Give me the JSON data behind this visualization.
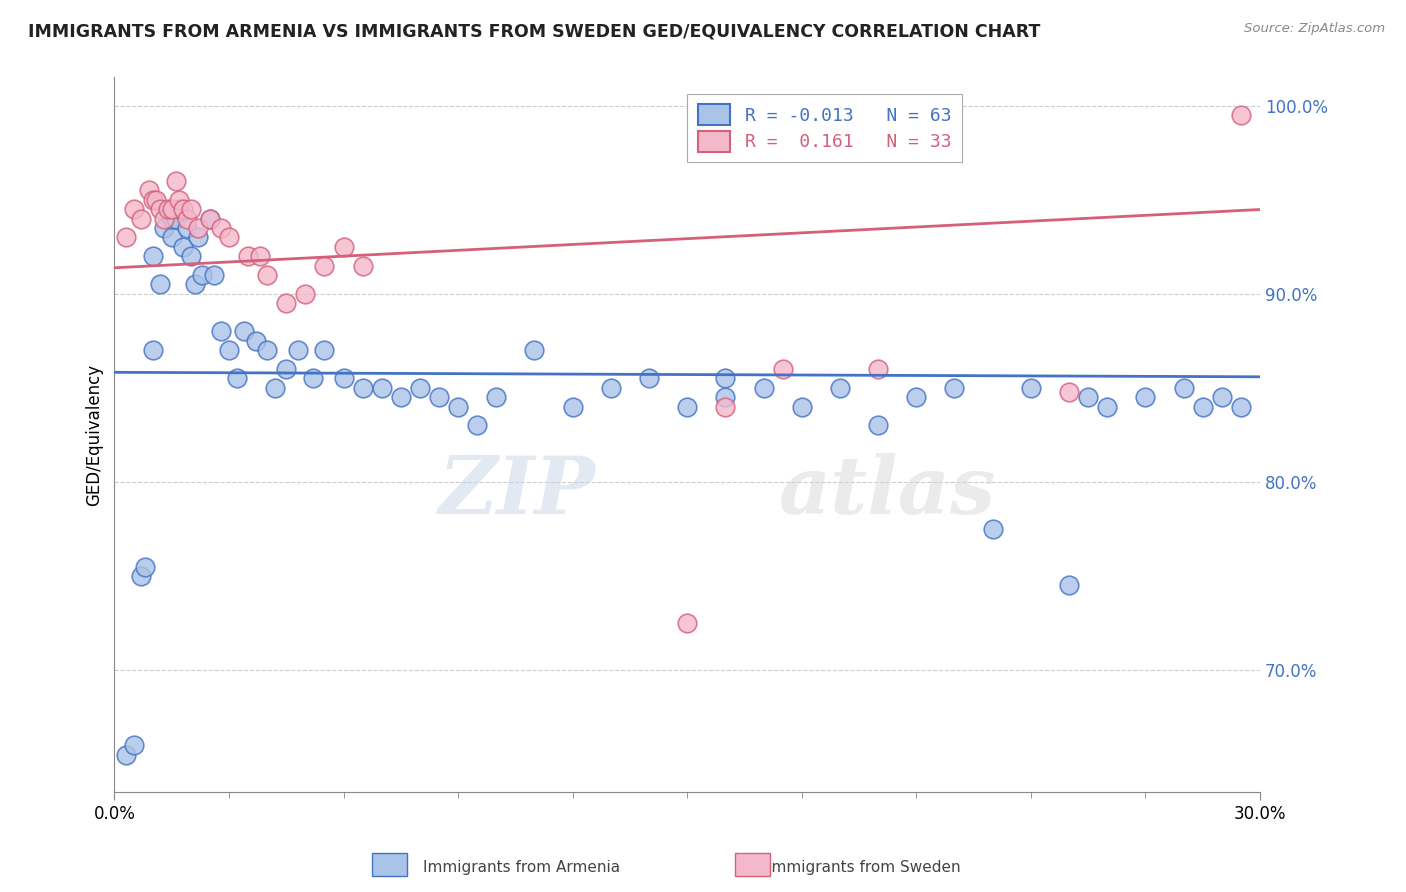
{
  "title": "IMMIGRANTS FROM ARMENIA VS IMMIGRANTS FROM SWEDEN GED/EQUIVALENCY CORRELATION CHART",
  "source": "Source: ZipAtlas.com",
  "ylabel": "GED/Equivalency",
  "xlim": [
    0.0,
    0.3
  ],
  "ylim": [
    0.635,
    1.015
  ],
  "r_armenia": -0.013,
  "n_armenia": 63,
  "r_sweden": 0.161,
  "n_sweden": 33,
  "color_armenia": "#aac4e8",
  "color_sweden": "#f4b8cc",
  "line_color_armenia": "#4472c4",
  "line_color_sweden": "#d4607a",
  "watermark": "ZIPatlas",
  "armenia_x": [
    0.003,
    0.005,
    0.007,
    0.008,
    0.01,
    0.01,
    0.012,
    0.013,
    0.015,
    0.015,
    0.016,
    0.017,
    0.018,
    0.019,
    0.02,
    0.021,
    0.022,
    0.023,
    0.025,
    0.026,
    0.028,
    0.03,
    0.032,
    0.034,
    0.037,
    0.04,
    0.042,
    0.045,
    0.048,
    0.052,
    0.055,
    0.06,
    0.065,
    0.07,
    0.075,
    0.08,
    0.085,
    0.09,
    0.095,
    0.1,
    0.11,
    0.12,
    0.13,
    0.14,
    0.15,
    0.16,
    0.16,
    0.17,
    0.18,
    0.19,
    0.2,
    0.21,
    0.22,
    0.23,
    0.24,
    0.25,
    0.255,
    0.26,
    0.27,
    0.28,
    0.285,
    0.29,
    0.295
  ],
  "armenia_y": [
    0.655,
    0.66,
    0.75,
    0.755,
    0.87,
    0.92,
    0.905,
    0.935,
    0.93,
    0.94,
    0.94,
    0.945,
    0.925,
    0.935,
    0.92,
    0.905,
    0.93,
    0.91,
    0.94,
    0.91,
    0.88,
    0.87,
    0.855,
    0.88,
    0.875,
    0.87,
    0.85,
    0.86,
    0.87,
    0.855,
    0.87,
    0.855,
    0.85,
    0.85,
    0.845,
    0.85,
    0.845,
    0.84,
    0.83,
    0.845,
    0.87,
    0.84,
    0.85,
    0.855,
    0.84,
    0.845,
    0.855,
    0.85,
    0.84,
    0.85,
    0.83,
    0.845,
    0.85,
    0.775,
    0.85,
    0.745,
    0.845,
    0.84,
    0.845,
    0.85,
    0.84,
    0.845,
    0.84
  ],
  "sweden_x": [
    0.003,
    0.005,
    0.007,
    0.009,
    0.01,
    0.011,
    0.012,
    0.013,
    0.014,
    0.015,
    0.016,
    0.017,
    0.018,
    0.019,
    0.02,
    0.022,
    0.025,
    0.028,
    0.03,
    0.035,
    0.038,
    0.04,
    0.045,
    0.05,
    0.055,
    0.06,
    0.065,
    0.15,
    0.16,
    0.175,
    0.2,
    0.25,
    0.295
  ],
  "sweden_y": [
    0.93,
    0.945,
    0.94,
    0.955,
    0.95,
    0.95,
    0.945,
    0.94,
    0.945,
    0.945,
    0.96,
    0.95,
    0.945,
    0.94,
    0.945,
    0.935,
    0.94,
    0.935,
    0.93,
    0.92,
    0.92,
    0.91,
    0.895,
    0.9,
    0.915,
    0.925,
    0.915,
    0.725,
    0.84,
    0.86,
    0.86,
    0.848,
    0.995
  ],
  "yticks": [
    0.7,
    0.8,
    0.9,
    1.0
  ],
  "ytick_labels": [
    "70.0%",
    "80.0%",
    "90.0%",
    "100.0%"
  ],
  "xtick_left": "0.0%",
  "xtick_right": "30.0%"
}
